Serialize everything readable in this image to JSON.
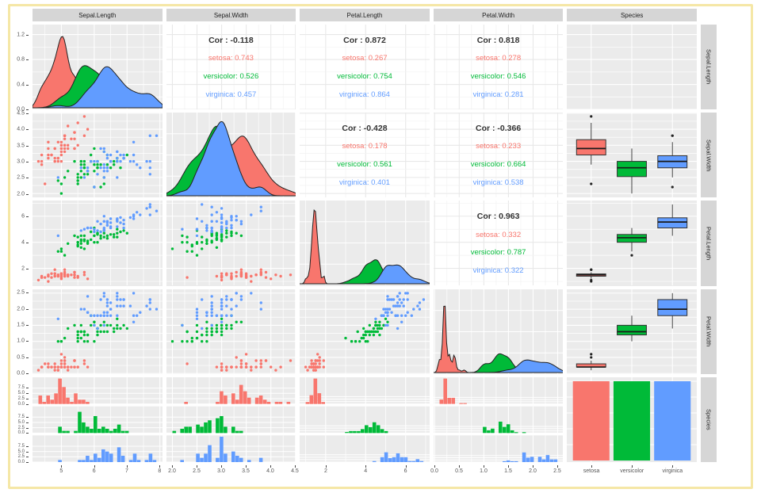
{
  "frame": {
    "border_color": "#F5E7A6",
    "background": "#ffffff"
  },
  "theme": {
    "panel_bg": "#EBEBEB",
    "strip_bg": "#D6D6D6",
    "grid_major": "#FFFFFF",
    "grid_minor": "#FFFFFF",
    "cor_grid_major": "#E8E8E8",
    "cor_grid_minor": "#F2F2F2",
    "tick_label_color": "#555555",
    "strip_text_color": "#1f1f1f",
    "cor_text_color": "#333333"
  },
  "chart_data": {
    "type": "scatterplot-matrix",
    "title": "",
    "description": "ggpairs-style pairs plot of the iris dataset: lower triangle scatterplots, diagonal density plots, upper triangle correlation text, last column boxplots by species, last row faceted histograms by species, bottom-right bar chart of species counts",
    "variables": [
      "Sepal.Length",
      "Sepal.Width",
      "Petal.Length",
      "Petal.Width",
      "Species"
    ],
    "groups": [
      "setosa",
      "versicolor",
      "virginica"
    ],
    "group_colors": {
      "setosa": "#F8766D",
      "versicolor": "#00BA38",
      "virginica": "#619CFF"
    },
    "cor_prefix": "Cor : ",
    "correlations": [
      {
        "row": 0,
        "col": 1,
        "cor": "-0.118",
        "setosa": "0.743",
        "versicolor": "0.526",
        "virginica": "0.457"
      },
      {
        "row": 0,
        "col": 2,
        "cor": "0.872",
        "setosa": "0.267",
        "versicolor": "0.754",
        "virginica": "0.864"
      },
      {
        "row": 0,
        "col": 3,
        "cor": "0.818",
        "setosa": "0.278",
        "versicolor": "0.546",
        "virginica": "0.281"
      },
      {
        "row": 1,
        "col": 2,
        "cor": "-0.428",
        "setosa": "0.178",
        "versicolor": "0.561",
        "virginica": "0.401"
      },
      {
        "row": 1,
        "col": 3,
        "cor": "-0.366",
        "setosa": "0.233",
        "versicolor": "0.664",
        "virginica": "0.538"
      },
      {
        "row": 2,
        "col": 3,
        "cor": "0.963",
        "setosa": "0.332",
        "versicolor": "0.787",
        "virginica": "0.322"
      }
    ],
    "axes": {
      "x": [
        {
          "range": [
            4.12,
            8.08
          ],
          "ticks": [
            5,
            6,
            7,
            8
          ],
          "labels": [
            "5",
            "6",
            "7",
            "8"
          ]
        },
        {
          "range": [
            1.88,
            4.52
          ],
          "ticks": [
            2.0,
            2.5,
            3.0,
            3.5,
            4.0,
            4.5
          ],
          "labels": [
            "2.0",
            "2.5",
            "3.0",
            "3.5",
            "4.0",
            "4.5"
          ]
        },
        {
          "range": [
            0.7,
            7.2
          ],
          "ticks": [
            2,
            4,
            6
          ],
          "labels": [
            "2",
            "4",
            "6"
          ]
        },
        {
          "range": [
            -0.02,
            2.62
          ],
          "ticks": [
            0.0,
            0.5,
            1.0,
            1.5,
            2.0,
            2.5
          ],
          "labels": [
            "0.0",
            "0.5",
            "1.0",
            "1.5",
            "2.0",
            "2.5"
          ]
        },
        {
          "cat": true,
          "range": [
            0.4,
            3.6
          ],
          "ticks": [
            1,
            2,
            3
          ],
          "labels": [
            "setosa",
            "versicolor",
            "virginica"
          ]
        }
      ],
      "y": [
        {
          "range": [
            0,
            1.36
          ],
          "ticks": [
            0.0,
            0.4,
            0.8,
            1.2
          ],
          "labels": [
            "0.0",
            "0.4",
            "0.8",
            "1.2"
          ]
        },
        {
          "range": [
            1.88,
            4.52
          ],
          "ticks": [
            2.0,
            2.5,
            3.0,
            3.5,
            4.0,
            4.5
          ],
          "labels": [
            "2.0",
            "2.5",
            "3.0",
            "3.5",
            "4.0",
            "4.5"
          ]
        },
        {
          "range": [
            0.7,
            7.2
          ],
          "ticks": [
            2,
            4,
            6
          ],
          "labels": [
            "2",
            "4",
            "6"
          ]
        },
        {
          "range": [
            -0.02,
            2.62
          ],
          "ticks": [
            0.0,
            0.5,
            1.0,
            1.5,
            2.0,
            2.5
          ],
          "labels": [
            "0.0",
            "0.5",
            "1.0",
            "1.5",
            "2.0",
            "2.5"
          ]
        },
        {
          "facet": true,
          "ticks": [
            0,
            2.5,
            5,
            7.5
          ],
          "labels": [
            "0.0",
            "2.5",
            "5.0",
            "7.5"
          ]
        }
      ]
    },
    "species_counts": {
      "setosa": 50,
      "versicolor": 50,
      "virginica": 50
    },
    "data": {
      "setosa": [
        [
          5.1,
          3.5,
          1.4,
          0.2
        ],
        [
          4.9,
          3.0,
          1.4,
          0.2
        ],
        [
          4.7,
          3.2,
          1.3,
          0.2
        ],
        [
          4.6,
          3.1,
          1.5,
          0.2
        ],
        [
          5.0,
          3.6,
          1.4,
          0.2
        ],
        [
          5.4,
          3.9,
          1.7,
          0.4
        ],
        [
          4.6,
          3.4,
          1.4,
          0.3
        ],
        [
          5.0,
          3.4,
          1.5,
          0.2
        ],
        [
          4.4,
          2.9,
          1.4,
          0.2
        ],
        [
          4.9,
          3.1,
          1.5,
          0.1
        ],
        [
          5.4,
          3.7,
          1.5,
          0.2
        ],
        [
          4.8,
          3.4,
          1.6,
          0.2
        ],
        [
          4.8,
          3.0,
          1.4,
          0.1
        ],
        [
          4.3,
          3.0,
          1.1,
          0.1
        ],
        [
          5.8,
          4.0,
          1.2,
          0.2
        ],
        [
          5.7,
          4.4,
          1.5,
          0.4
        ],
        [
          5.4,
          3.9,
          1.3,
          0.4
        ],
        [
          5.1,
          3.5,
          1.4,
          0.3
        ],
        [
          5.7,
          3.8,
          1.7,
          0.3
        ],
        [
          5.1,
          3.8,
          1.5,
          0.3
        ],
        [
          5.4,
          3.4,
          1.7,
          0.2
        ],
        [
          5.1,
          3.7,
          1.5,
          0.4
        ],
        [
          4.6,
          3.6,
          1.0,
          0.2
        ],
        [
          5.1,
          3.3,
          1.7,
          0.5
        ],
        [
          4.8,
          3.4,
          1.9,
          0.2
        ],
        [
          5.0,
          3.0,
          1.6,
          0.2
        ],
        [
          5.0,
          3.4,
          1.6,
          0.4
        ],
        [
          5.2,
          3.5,
          1.5,
          0.2
        ],
        [
          5.2,
          3.4,
          1.4,
          0.2
        ],
        [
          4.7,
          3.2,
          1.6,
          0.2
        ],
        [
          4.8,
          3.1,
          1.6,
          0.2
        ],
        [
          5.4,
          3.4,
          1.5,
          0.4
        ],
        [
          5.2,
          4.1,
          1.5,
          0.1
        ],
        [
          5.5,
          4.2,
          1.4,
          0.2
        ],
        [
          4.9,
          3.1,
          1.5,
          0.2
        ],
        [
          5.0,
          3.2,
          1.2,
          0.2
        ],
        [
          5.5,
          3.5,
          1.3,
          0.2
        ],
        [
          4.9,
          3.6,
          1.4,
          0.1
        ],
        [
          4.4,
          3.0,
          1.3,
          0.2
        ],
        [
          5.1,
          3.4,
          1.5,
          0.2
        ],
        [
          5.0,
          3.5,
          1.3,
          0.3
        ],
        [
          4.5,
          2.3,
          1.3,
          0.3
        ],
        [
          4.4,
          3.2,
          1.3,
          0.2
        ],
        [
          5.0,
          3.5,
          1.6,
          0.6
        ],
        [
          5.1,
          3.8,
          1.9,
          0.4
        ],
        [
          4.8,
          3.0,
          1.4,
          0.3
        ],
        [
          5.1,
          3.8,
          1.6,
          0.2
        ],
        [
          4.6,
          3.2,
          1.4,
          0.2
        ],
        [
          5.3,
          3.7,
          1.5,
          0.2
        ],
        [
          5.0,
          3.3,
          1.4,
          0.2
        ]
      ],
      "versicolor": [
        [
          7.0,
          3.2,
          4.7,
          1.4
        ],
        [
          6.4,
          3.2,
          4.5,
          1.5
        ],
        [
          6.9,
          3.1,
          4.9,
          1.5
        ],
        [
          5.5,
          2.3,
          4.0,
          1.3
        ],
        [
          6.5,
          2.8,
          4.6,
          1.5
        ],
        [
          5.7,
          2.8,
          4.5,
          1.3
        ],
        [
          6.3,
          3.3,
          4.7,
          1.6
        ],
        [
          4.9,
          2.4,
          3.3,
          1.0
        ],
        [
          6.6,
          2.9,
          4.6,
          1.3
        ],
        [
          5.2,
          2.7,
          3.9,
          1.4
        ],
        [
          5.0,
          2.0,
          3.5,
          1.0
        ],
        [
          5.9,
          3.0,
          4.2,
          1.5
        ],
        [
          6.0,
          2.2,
          4.0,
          1.0
        ],
        [
          6.1,
          2.9,
          4.7,
          1.4
        ],
        [
          5.6,
          2.9,
          3.6,
          1.3
        ],
        [
          6.7,
          3.1,
          4.4,
          1.4
        ],
        [
          5.6,
          3.0,
          4.5,
          1.5
        ],
        [
          5.8,
          2.7,
          4.1,
          1.0
        ],
        [
          6.2,
          2.2,
          4.5,
          1.5
        ],
        [
          5.6,
          2.5,
          3.9,
          1.1
        ],
        [
          5.9,
          3.2,
          4.8,
          1.8
        ],
        [
          6.1,
          2.8,
          4.0,
          1.3
        ],
        [
          6.3,
          2.5,
          4.9,
          1.5
        ],
        [
          6.1,
          2.8,
          4.7,
          1.2
        ],
        [
          6.4,
          2.9,
          4.3,
          1.3
        ],
        [
          6.6,
          3.0,
          4.4,
          1.4
        ],
        [
          6.8,
          2.8,
          4.8,
          1.4
        ],
        [
          6.7,
          3.0,
          5.0,
          1.7
        ],
        [
          6.0,
          2.9,
          4.5,
          1.5
        ],
        [
          5.7,
          2.6,
          3.5,
          1.0
        ],
        [
          5.5,
          2.4,
          3.8,
          1.1
        ],
        [
          5.5,
          2.4,
          3.7,
          1.0
        ],
        [
          5.8,
          2.7,
          3.9,
          1.2
        ],
        [
          6.0,
          2.7,
          5.1,
          1.6
        ],
        [
          5.4,
          3.0,
          4.5,
          1.5
        ],
        [
          6.0,
          3.4,
          4.5,
          1.6
        ],
        [
          6.7,
          3.1,
          4.7,
          1.5
        ],
        [
          6.3,
          2.3,
          4.4,
          1.3
        ],
        [
          5.6,
          3.0,
          4.1,
          1.3
        ],
        [
          5.5,
          2.5,
          4.0,
          1.3
        ],
        [
          5.5,
          2.6,
          4.4,
          1.2
        ],
        [
          6.1,
          3.0,
          4.6,
          1.4
        ],
        [
          5.8,
          2.6,
          4.0,
          1.2
        ],
        [
          5.0,
          2.3,
          3.3,
          1.0
        ],
        [
          5.6,
          2.7,
          4.2,
          1.3
        ],
        [
          5.7,
          3.0,
          4.2,
          1.2
        ],
        [
          5.7,
          2.9,
          4.2,
          1.3
        ],
        [
          6.2,
          2.9,
          4.3,
          1.3
        ],
        [
          5.1,
          2.5,
          3.0,
          1.1
        ],
        [
          5.7,
          2.8,
          4.1,
          1.3
        ]
      ],
      "virginica": [
        [
          6.3,
          3.3,
          6.0,
          2.5
        ],
        [
          5.8,
          2.7,
          5.1,
          1.9
        ],
        [
          7.1,
          3.0,
          5.9,
          2.1
        ],
        [
          6.3,
          2.9,
          5.6,
          1.8
        ],
        [
          6.5,
          3.0,
          5.8,
          2.2
        ],
        [
          7.6,
          3.0,
          6.6,
          2.1
        ],
        [
          4.9,
          2.5,
          4.5,
          1.7
        ],
        [
          7.3,
          2.9,
          6.3,
          1.8
        ],
        [
          6.7,
          2.5,
          5.8,
          1.8
        ],
        [
          7.2,
          3.6,
          6.1,
          2.5
        ],
        [
          6.5,
          3.2,
          5.1,
          2.0
        ],
        [
          6.4,
          2.7,
          5.3,
          1.9
        ],
        [
          6.8,
          3.0,
          5.5,
          2.1
        ],
        [
          5.7,
          2.5,
          5.0,
          2.0
        ],
        [
          5.8,
          2.8,
          5.1,
          2.4
        ],
        [
          6.4,
          3.2,
          5.3,
          2.3
        ],
        [
          6.5,
          3.0,
          5.5,
          1.8
        ],
        [
          7.7,
          3.8,
          6.7,
          2.2
        ],
        [
          7.7,
          2.6,
          6.9,
          2.3
        ],
        [
          6.0,
          2.2,
          5.0,
          1.5
        ],
        [
          6.9,
          3.2,
          5.7,
          2.3
        ],
        [
          5.6,
          2.8,
          4.9,
          2.0
        ],
        [
          7.7,
          2.8,
          6.7,
          2.0
        ],
        [
          6.3,
          2.7,
          4.9,
          1.8
        ],
        [
          6.7,
          3.3,
          5.7,
          2.1
        ],
        [
          7.2,
          3.2,
          6.0,
          1.8
        ],
        [
          6.2,
          2.8,
          4.8,
          1.8
        ],
        [
          6.1,
          3.0,
          4.9,
          1.8
        ],
        [
          6.4,
          2.8,
          5.6,
          2.1
        ],
        [
          7.2,
          3.0,
          5.8,
          1.6
        ],
        [
          7.4,
          2.8,
          6.1,
          1.9
        ],
        [
          7.9,
          3.8,
          6.4,
          2.0
        ],
        [
          6.4,
          2.8,
          5.6,
          2.2
        ],
        [
          6.3,
          2.8,
          5.1,
          1.5
        ],
        [
          6.1,
          2.6,
          5.6,
          1.4
        ],
        [
          7.7,
          3.0,
          6.1,
          2.3
        ],
        [
          6.3,
          3.4,
          5.6,
          2.4
        ],
        [
          6.4,
          3.1,
          5.5,
          1.8
        ],
        [
          6.0,
          3.0,
          4.8,
          1.8
        ],
        [
          6.9,
          3.1,
          5.4,
          2.1
        ],
        [
          6.7,
          3.1,
          5.6,
          2.4
        ],
        [
          6.9,
          3.1,
          5.1,
          2.3
        ],
        [
          5.8,
          2.7,
          5.1,
          1.9
        ],
        [
          6.8,
          3.2,
          5.9,
          2.3
        ],
        [
          6.7,
          3.3,
          5.7,
          2.5
        ],
        [
          6.7,
          3.0,
          5.2,
          2.3
        ],
        [
          6.3,
          2.5,
          5.0,
          1.9
        ],
        [
          6.5,
          3.0,
          5.2,
          2.0
        ],
        [
          6.2,
          3.4,
          5.4,
          2.3
        ],
        [
          5.9,
          3.0,
          5.1,
          1.8
        ]
      ]
    }
  }
}
